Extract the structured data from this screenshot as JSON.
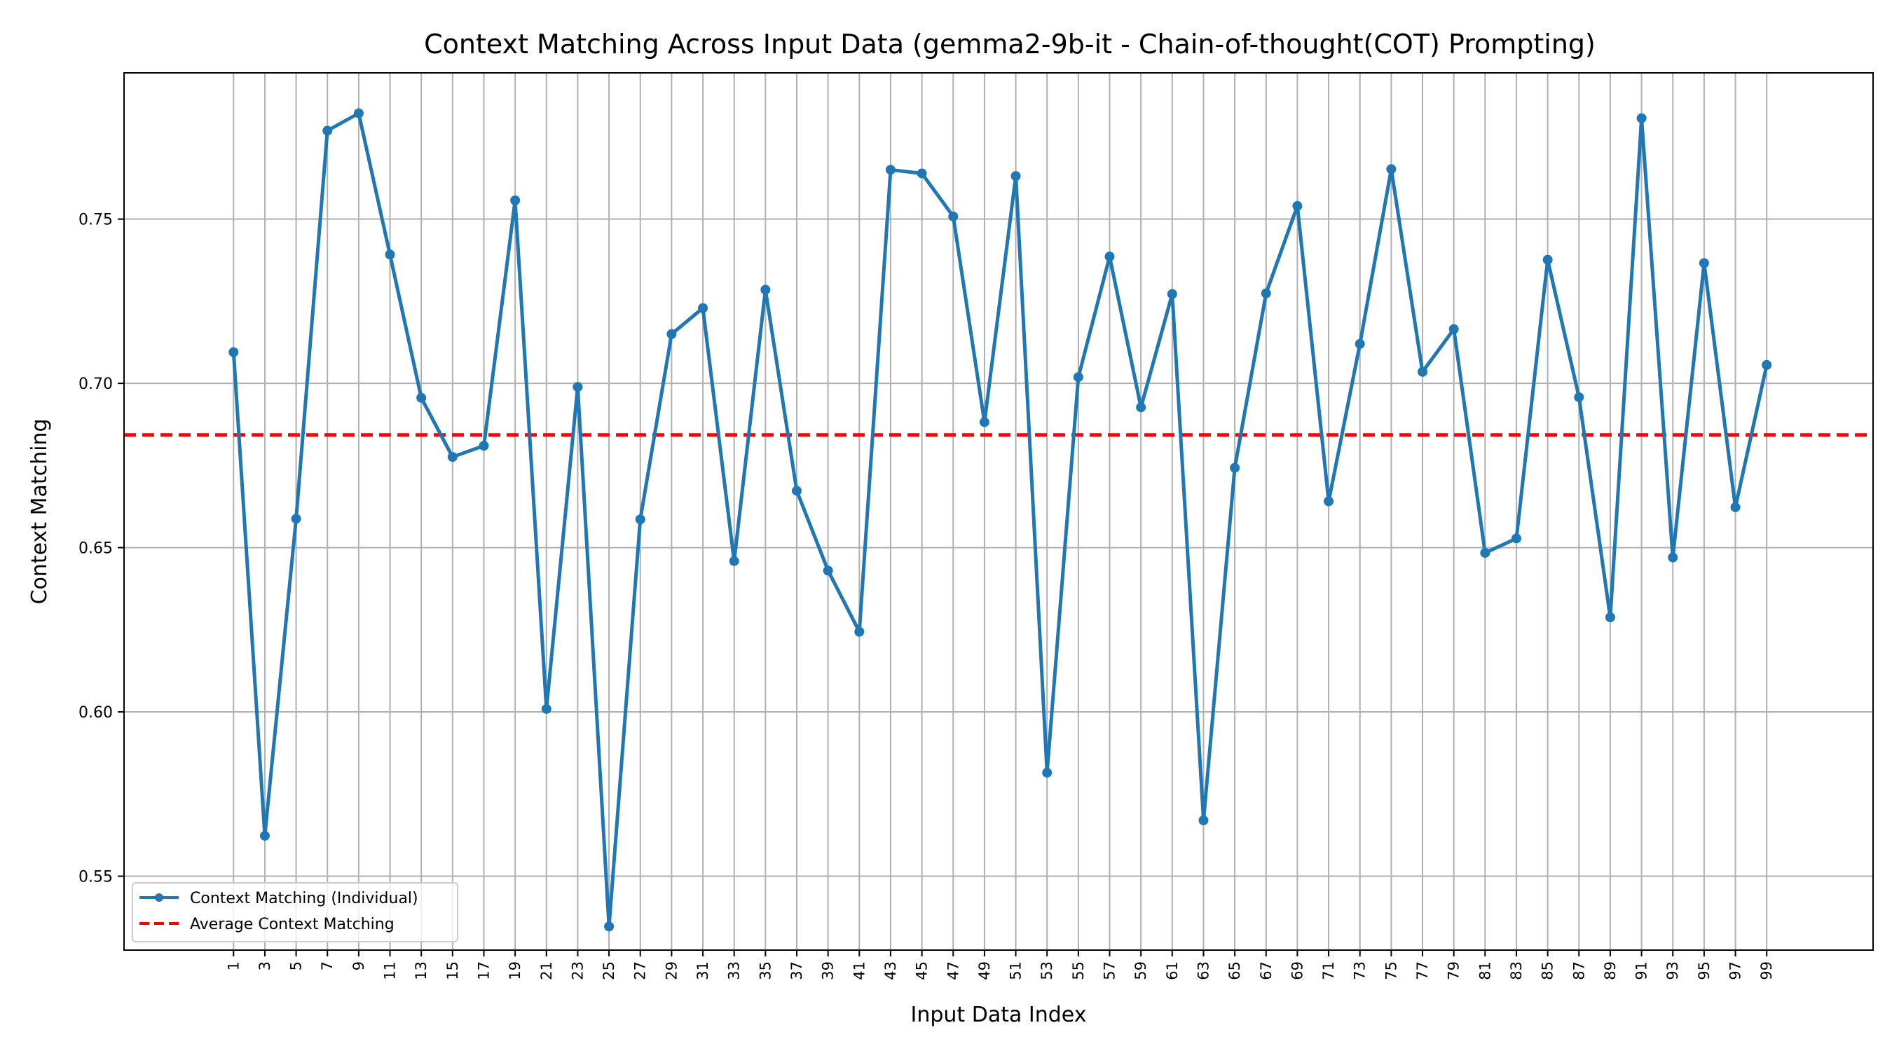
{
  "chart_data": {
    "type": "line",
    "title": "Context Matching Across Input Data (gemma2-9b-it - Chain-of-thought(COT) Prompting)",
    "xlabel": "Input Data Index",
    "ylabel": "Context Matching",
    "x": [
      1,
      3,
      5,
      7,
      9,
      11,
      13,
      15,
      17,
      19,
      21,
      23,
      25,
      27,
      29,
      31,
      33,
      35,
      37,
      39,
      41,
      43,
      45,
      47,
      49,
      51,
      53,
      55,
      57,
      59,
      61,
      63,
      65,
      67,
      69,
      71,
      73,
      75,
      77,
      79,
      81,
      83,
      85,
      87,
      89,
      91,
      93,
      95,
      97,
      99
    ],
    "xticks": [
      "1",
      "3",
      "5",
      "7",
      "9",
      "11",
      "13",
      "15",
      "17",
      "19",
      "21",
      "23",
      "25",
      "27",
      "29",
      "31",
      "33",
      "35",
      "37",
      "39",
      "41",
      "43",
      "45",
      "47",
      "49",
      "51",
      "53",
      "55",
      "57",
      "59",
      "61",
      "63",
      "65",
      "67",
      "69",
      "71",
      "73",
      "75",
      "77",
      "79",
      "81",
      "83",
      "85",
      "87",
      "89",
      "91",
      "93",
      "95",
      "97",
      "99"
    ],
    "yticks": [
      "0.55",
      "0.60",
      "0.65",
      "0.70",
      "0.75"
    ],
    "yticks_values": [
      0.55,
      0.6,
      0.65,
      0.7,
      0.75
    ],
    "xlim": [
      -6.0,
      105.8
    ],
    "ylim": [
      0.5275,
      0.7945
    ],
    "grid": true,
    "legend_position": "lower-left",
    "series": [
      {
        "name": "Context Matching (Individual)",
        "color": "#1f77b4",
        "marker": "circle",
        "values": [
          0.7095,
          0.5623,
          0.6588,
          0.7769,
          0.7822,
          0.7392,
          0.6956,
          0.6776,
          0.681,
          0.7557,
          0.6009,
          0.6989,
          0.5347,
          0.6586,
          0.715,
          0.7229,
          0.6459,
          0.7285,
          0.6673,
          0.643,
          0.6244,
          0.765,
          0.7639,
          0.7508,
          0.6882,
          0.7631,
          0.5815,
          0.7019,
          0.7386,
          0.6927,
          0.7272,
          0.567,
          0.6743,
          0.7274,
          0.754,
          0.6641,
          0.712,
          0.7652,
          0.7035,
          0.7165,
          0.6484,
          0.6528,
          0.7376,
          0.6958,
          0.6288,
          0.7807,
          0.647,
          0.7366,
          0.6623,
          0.7056
        ]
      }
    ],
    "average": {
      "name": "Average Context Matching",
      "value": 0.6843,
      "color": "#ff0000",
      "style": "dashed"
    }
  }
}
